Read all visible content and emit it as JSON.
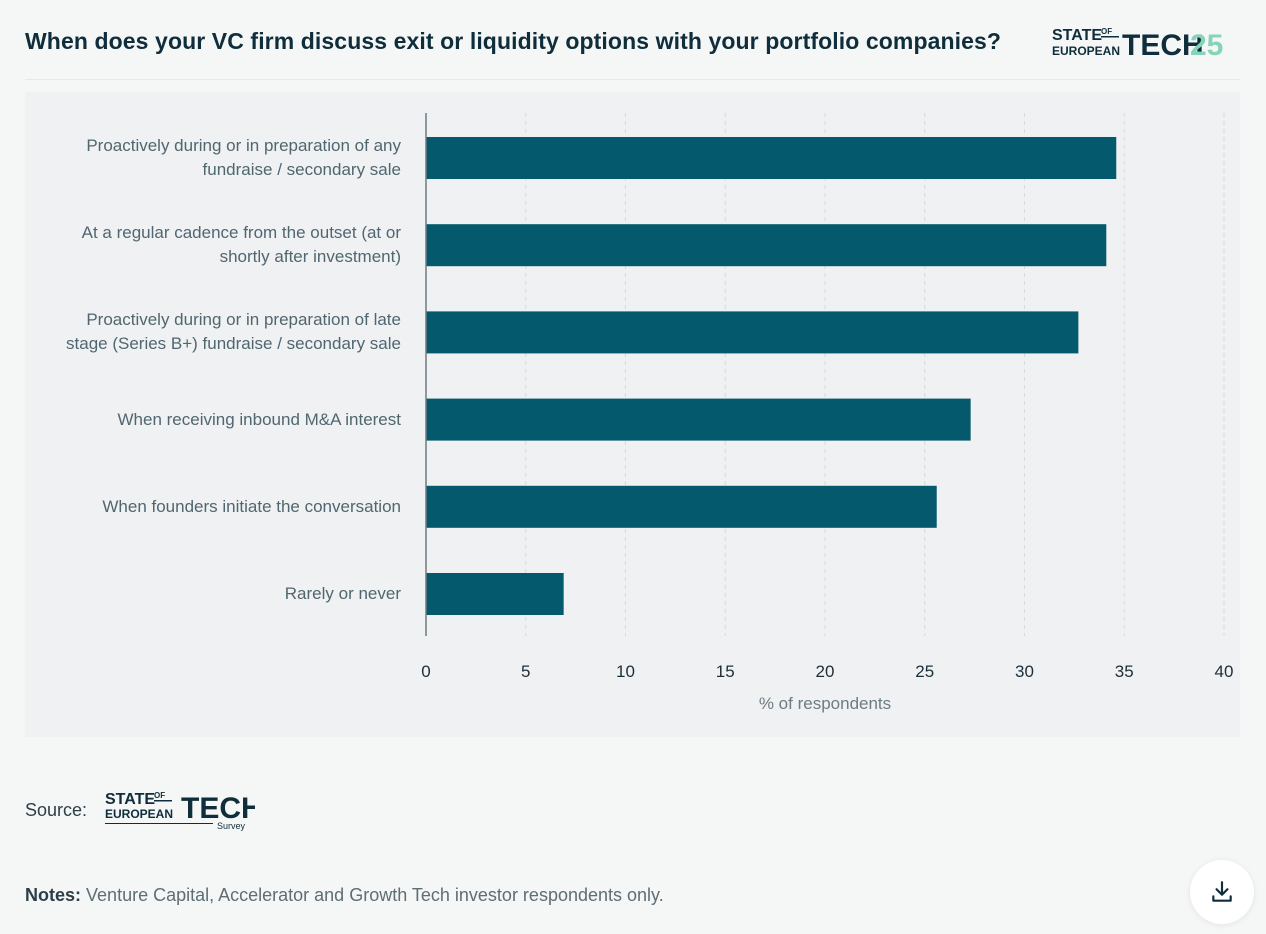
{
  "header": {
    "title": "When does your VC firm discuss exit or liquidity options with your portfolio companies?",
    "brand": {
      "line1": "STATE",
      "of": "OF",
      "line2": "EUROPEAN",
      "tech": "TECH",
      "year": "25"
    }
  },
  "colors": {
    "bar": "#04596c",
    "accent": "#86d4b8",
    "text_dark": "#0f2d3a"
  },
  "chart_data": {
    "type": "bar",
    "orientation": "horizontal",
    "title": "When does your VC firm discuss exit or liquidity options with your portfolio companies?",
    "categories": [
      [
        "Proactively during or in preparation of any",
        "fundraise / secondary sale"
      ],
      [
        "At a regular cadence from the outset (at or",
        "shortly after investment)"
      ],
      [
        "Proactively during or in preparation of late",
        "stage (Series B+) fundraise / secondary sale"
      ],
      [
        "When receiving inbound M&A interest"
      ],
      [
        "When founders initiate the conversation"
      ],
      [
        "Rarely or never"
      ]
    ],
    "values": [
      34.6,
      34.1,
      32.7,
      27.3,
      25.6,
      6.9
    ],
    "xlabel": "% of respondents",
    "ylabel": "",
    "xlim": [
      0,
      40
    ],
    "ticks": [
      "0",
      "5",
      "10",
      "15",
      "20",
      "25",
      "30",
      "35",
      "40"
    ],
    "grid": true
  },
  "source": {
    "label": "Source:",
    "logo": {
      "line1": "STATE",
      "of": "OF",
      "line2": "EUROPEAN",
      "tech": "TECH",
      "sub": "Survey"
    }
  },
  "notes": {
    "label": "Notes:",
    "text": "Venture Capital, Accelerator and Growth Tech investor respondents only."
  },
  "download": {
    "icon": "download-icon"
  }
}
